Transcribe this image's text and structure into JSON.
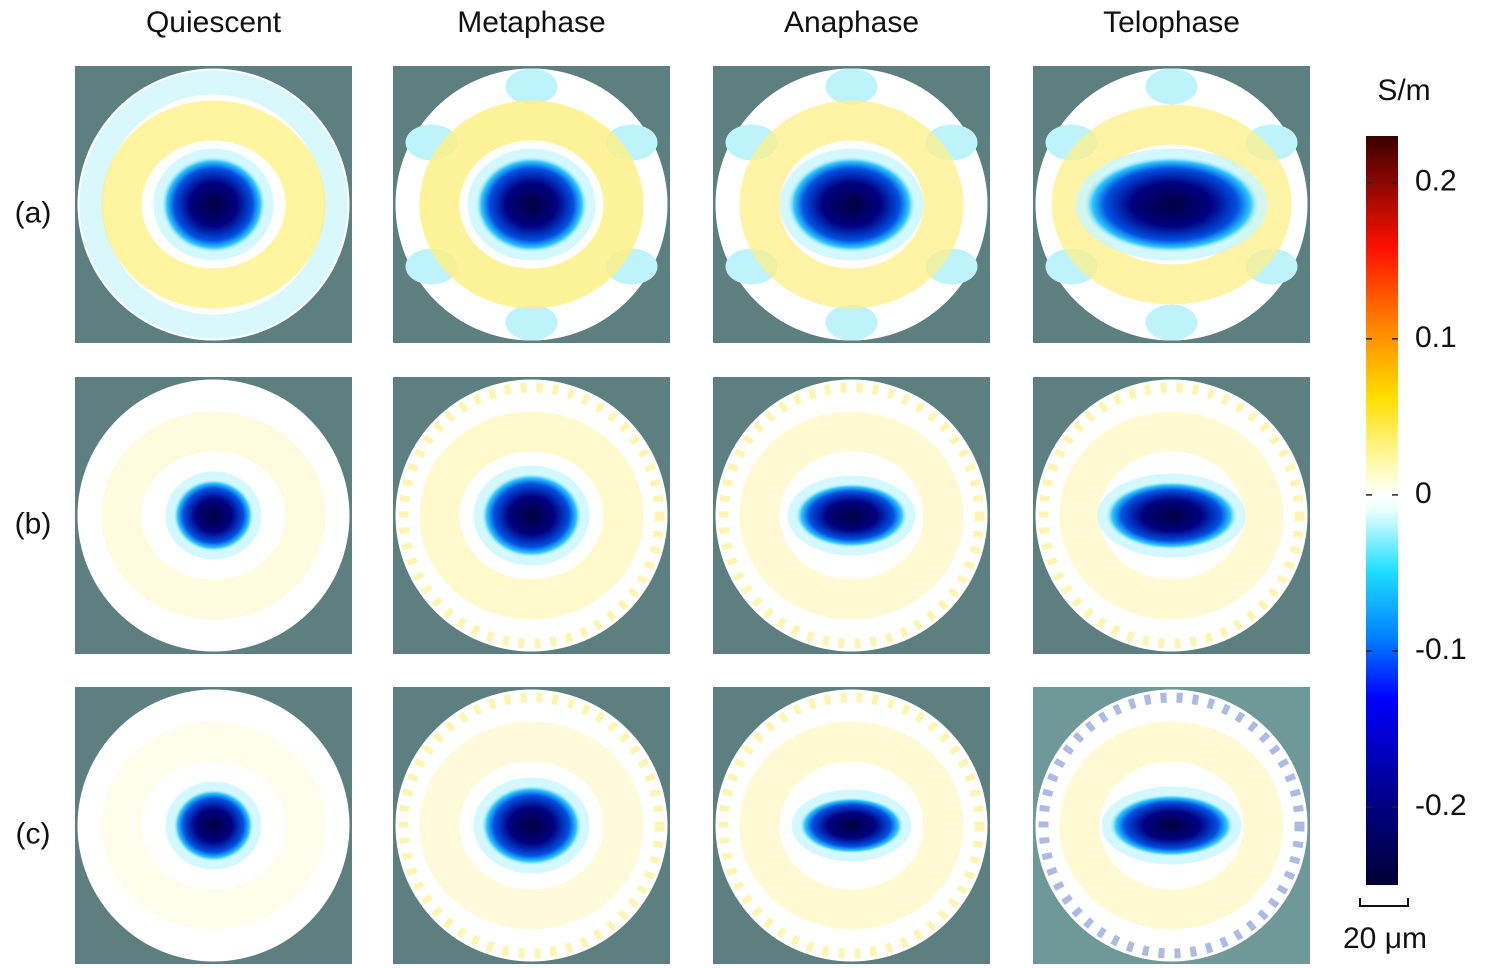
{
  "figure": {
    "columns": [
      "Quiescent",
      "Metaphase",
      "Anaphase",
      "Telophase"
    ],
    "rows": [
      "(a)",
      "(b)",
      "(c)"
    ],
    "colorbar": {
      "label": "S/m",
      "clim": [
        -0.25,
        0.23
      ],
      "ticks": [
        0.2,
        0.1,
        0,
        -0.1,
        -0.2
      ]
    },
    "scale_bar": "20 μm"
  }
}
